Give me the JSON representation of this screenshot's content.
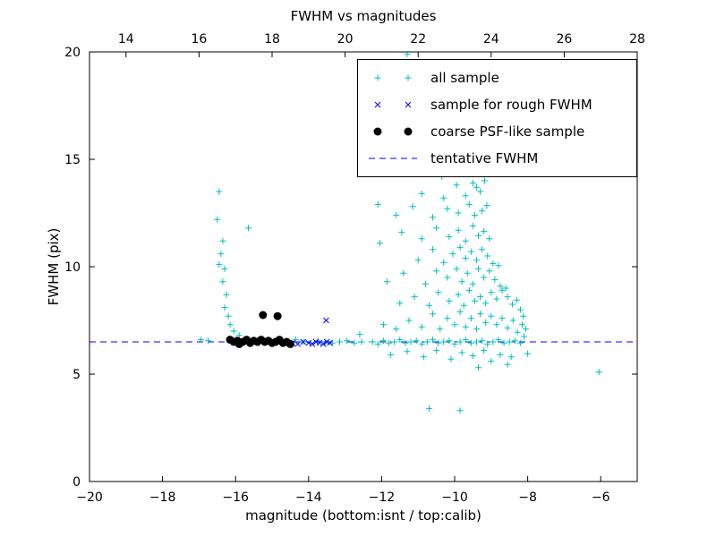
{
  "chart_data": {
    "type": "scatter",
    "title": "FWHM vs magnitudes",
    "xlabel": "magnitude (bottom:isnt / top:calib)",
    "ylabel": "FWHM (pix)",
    "xlim": [
      -20,
      -5
    ],
    "top_xlim": [
      13,
      28
    ],
    "ylim": [
      0,
      20
    ],
    "x_ticks": [
      -20,
      -18,
      -16,
      -14,
      -12,
      -10,
      -8,
      -6
    ],
    "top_x_ticks": [
      14,
      16,
      18,
      20,
      22,
      24,
      26,
      28
    ],
    "y_ticks": [
      0,
      5,
      10,
      15,
      20
    ],
    "grid": false,
    "legend_position": "upper right",
    "axis_color": "#000000",
    "background": "#ffffff",
    "series": [
      {
        "name": "all sample",
        "marker": "plus",
        "color": "#00bfbf",
        "points": [
          [
            -16.45,
            13.5
          ],
          [
            -16.5,
            12.2
          ],
          [
            -16.35,
            11.2
          ],
          [
            -16.4,
            10.6
          ],
          [
            -16.45,
            10.1
          ],
          [
            -16.3,
            9.9
          ],
          [
            -16.35,
            9.3
          ],
          [
            -16.25,
            8.7
          ],
          [
            -16.3,
            8.1
          ],
          [
            -16.2,
            7.7
          ],
          [
            -16.15,
            7.3
          ],
          [
            -16.05,
            7.0
          ],
          [
            -15.9,
            6.8
          ],
          [
            -16.95,
            6.6
          ],
          [
            -16.75,
            6.55
          ],
          [
            -15.65,
            11.8
          ],
          [
            -16.1,
            6.55
          ],
          [
            -15.95,
            6.5
          ],
          [
            -15.5,
            6.6
          ],
          [
            -15.35,
            6.45
          ],
          [
            -15.15,
            6.5
          ],
          [
            -14.95,
            6.55
          ],
          [
            -14.75,
            6.45
          ],
          [
            -14.55,
            6.5
          ],
          [
            -14.35,
            6.6
          ],
          [
            -14.15,
            6.5
          ],
          [
            -13.95,
            6.45
          ],
          [
            -13.75,
            6.55
          ],
          [
            -13.55,
            6.5
          ],
          [
            -13.35,
            6.45
          ],
          [
            -13.15,
            6.5
          ],
          [
            -12.95,
            6.55
          ],
          [
            -12.75,
            6.45
          ],
          [
            -12.55,
            6.5
          ],
          [
            -12.6,
            6.85
          ],
          [
            -12.25,
            6.5
          ],
          [
            -12.1,
            6.4
          ],
          [
            -11.95,
            6.55
          ],
          [
            -11.8,
            6.45
          ],
          [
            -11.65,
            6.5
          ],
          [
            -11.5,
            6.6
          ],
          [
            -11.35,
            6.45
          ],
          [
            -11.2,
            6.5
          ],
          [
            -11.05,
            6.55
          ],
          [
            -10.9,
            6.4
          ],
          [
            -10.75,
            6.5
          ],
          [
            -10.6,
            6.6
          ],
          [
            -10.45,
            6.45
          ],
          [
            -10.3,
            6.5
          ],
          [
            -10.15,
            6.55
          ],
          [
            -10.0,
            6.4
          ],
          [
            -9.85,
            6.5
          ],
          [
            -9.7,
            6.6
          ],
          [
            -9.55,
            6.45
          ],
          [
            -9.4,
            6.5
          ],
          [
            -9.25,
            6.55
          ],
          [
            -9.1,
            6.4
          ],
          [
            -8.95,
            6.5
          ],
          [
            -8.8,
            6.6
          ],
          [
            -8.65,
            6.45
          ],
          [
            -8.5,
            6.5
          ],
          [
            -8.35,
            6.55
          ],
          [
            -8.2,
            6.45
          ],
          [
            -11.75,
            5.9
          ],
          [
            -11.3,
            6.05
          ],
          [
            -10.85,
            5.8
          ],
          [
            -10.5,
            6.1
          ],
          [
            -10.1,
            5.7
          ],
          [
            -9.8,
            6.0
          ],
          [
            -9.5,
            5.85
          ],
          [
            -9.2,
            6.1
          ],
          [
            -9.0,
            5.6
          ],
          [
            -8.75,
            5.9
          ],
          [
            -8.55,
            5.45
          ],
          [
            -8.45,
            5.8
          ],
          [
            -9.35,
            5.3
          ],
          [
            -8.0,
            5.95
          ],
          [
            -11.95,
            7.3
          ],
          [
            -11.6,
            7.1
          ],
          [
            -11.25,
            7.5
          ],
          [
            -10.9,
            7.2
          ],
          [
            -10.6,
            7.8
          ],
          [
            -10.4,
            7.1
          ],
          [
            -10.2,
            7.6
          ],
          [
            -10.0,
            7.3
          ],
          [
            -9.85,
            7.9
          ],
          [
            -9.7,
            7.2
          ],
          [
            -9.55,
            7.6
          ],
          [
            -9.4,
            7.1
          ],
          [
            -9.3,
            7.8
          ],
          [
            -9.15,
            7.4
          ],
          [
            -9.0,
            7.7
          ],
          [
            -8.85,
            7.3
          ],
          [
            -8.7,
            7.6
          ],
          [
            -8.55,
            7.15
          ],
          [
            -8.4,
            7.5
          ],
          [
            -8.28,
            6.95
          ],
          [
            -8.15,
            7.3
          ],
          [
            -8.1,
            6.75
          ],
          [
            -11.5,
            8.3
          ],
          [
            -11.1,
            8.6
          ],
          [
            -10.7,
            8.2
          ],
          [
            -10.45,
            8.8
          ],
          [
            -10.15,
            8.4
          ],
          [
            -9.9,
            8.7
          ],
          [
            -9.75,
            8.2
          ],
          [
            -9.6,
            8.9
          ],
          [
            -9.45,
            8.4
          ],
          [
            -9.3,
            8.6
          ],
          [
            -9.15,
            8.3
          ],
          [
            -9.0,
            8.8
          ],
          [
            -8.85,
            8.5
          ],
          [
            -8.7,
            8.9
          ],
          [
            -8.55,
            8.6
          ],
          [
            -8.42,
            8.25
          ],
          [
            -8.3,
            8.45
          ],
          [
            -11.85,
            9.3
          ],
          [
            -11.4,
            9.7
          ],
          [
            -10.8,
            9.2
          ],
          [
            -10.5,
            9.8
          ],
          [
            -10.2,
            9.5
          ],
          [
            -9.95,
            9.9
          ],
          [
            -9.8,
            9.3
          ],
          [
            -9.65,
            9.7
          ],
          [
            -9.5,
            9.2
          ],
          [
            -9.35,
            9.9
          ],
          [
            -9.2,
            9.5
          ],
          [
            -9.05,
            9.8
          ],
          [
            -8.9,
            9.4
          ],
          [
            -8.75,
            9.1
          ],
          [
            -8.6,
            9.0
          ],
          [
            -11.0,
            10.3
          ],
          [
            -10.6,
            10.8
          ],
          [
            -10.3,
            10.2
          ],
          [
            -10.05,
            10.6
          ],
          [
            -9.85,
            10.9
          ],
          [
            -9.7,
            10.4
          ],
          [
            -9.55,
            10.7
          ],
          [
            -9.4,
            10.3
          ],
          [
            -9.25,
            10.8
          ],
          [
            -9.1,
            10.5
          ],
          [
            -8.95,
            10.15
          ],
          [
            -8.8,
            10.05
          ],
          [
            -11.45,
            11.6
          ],
          [
            -10.9,
            11.3
          ],
          [
            -10.5,
            11.8
          ],
          [
            -10.15,
            11.4
          ],
          [
            -9.9,
            11.7
          ],
          [
            -9.7,
            11.2
          ],
          [
            -9.5,
            11.9
          ],
          [
            -9.35,
            11.45
          ],
          [
            -9.2,
            11.65
          ],
          [
            -9.05,
            11.3
          ],
          [
            -11.6,
            12.4
          ],
          [
            -11.15,
            12.8
          ],
          [
            -10.6,
            12.3
          ],
          [
            -10.2,
            12.7
          ],
          [
            -9.9,
            12.5
          ],
          [
            -9.6,
            12.9
          ],
          [
            -9.45,
            12.4
          ],
          [
            -9.25,
            12.6
          ],
          [
            -9.12,
            12.85
          ],
          [
            -10.9,
            13.4
          ],
          [
            -10.35,
            14.2
          ],
          [
            -10.3,
            13.2
          ],
          [
            -9.95,
            13.8
          ],
          [
            -9.7,
            13.3
          ],
          [
            -9.5,
            13.9
          ],
          [
            -9.3,
            13.5
          ],
          [
            -9.18,
            14.0
          ],
          [
            -9.4,
            13.7
          ],
          [
            -8.2,
            8.0
          ],
          [
            -8.12,
            7.7
          ],
          [
            -8.05,
            7.1
          ],
          [
            -10.7,
            3.4
          ],
          [
            -9.85,
            3.3
          ],
          [
            -6.05,
            5.1
          ],
          [
            -11.3,
            19.9
          ],
          [
            -12.1,
            12.9
          ],
          [
            -12.05,
            11.1
          ]
        ]
      },
      {
        "name": "sample for rough FWHM",
        "marker": "x",
        "color": "#0000ff",
        "points": [
          [
            -14.6,
            6.5
          ],
          [
            -14.45,
            6.45
          ],
          [
            -14.3,
            6.4
          ],
          [
            -14.15,
            6.5
          ],
          [
            -14.0,
            6.45
          ],
          [
            -13.9,
            6.4
          ],
          [
            -13.8,
            6.5
          ],
          [
            -13.7,
            6.45
          ],
          [
            -13.6,
            6.4
          ],
          [
            -13.5,
            6.5
          ],
          [
            -13.42,
            6.45
          ],
          [
            -13.52,
            7.5
          ]
        ]
      },
      {
        "name": "coarse PSF-like sample",
        "marker": "dot",
        "color": "#000000",
        "points": [
          [
            -16.15,
            6.6
          ],
          [
            -16.05,
            6.5
          ],
          [
            -15.95,
            6.55
          ],
          [
            -15.9,
            6.4
          ],
          [
            -15.8,
            6.5
          ],
          [
            -15.7,
            6.6
          ],
          [
            -15.6,
            6.45
          ],
          [
            -15.5,
            6.55
          ],
          [
            -15.4,
            6.5
          ],
          [
            -15.3,
            6.6
          ],
          [
            -15.2,
            6.5
          ],
          [
            -15.1,
            6.55
          ],
          [
            -15.0,
            6.45
          ],
          [
            -14.9,
            6.5
          ],
          [
            -14.8,
            6.6
          ],
          [
            -14.7,
            6.45
          ],
          [
            -14.6,
            6.5
          ],
          [
            -14.5,
            6.4
          ],
          [
            -15.25,
            7.75
          ],
          [
            -14.85,
            7.7
          ]
        ]
      },
      {
        "name": "tentative FWHM",
        "marker": "dashed-line",
        "color": "#0000ff",
        "y": 6.5
      }
    ]
  }
}
